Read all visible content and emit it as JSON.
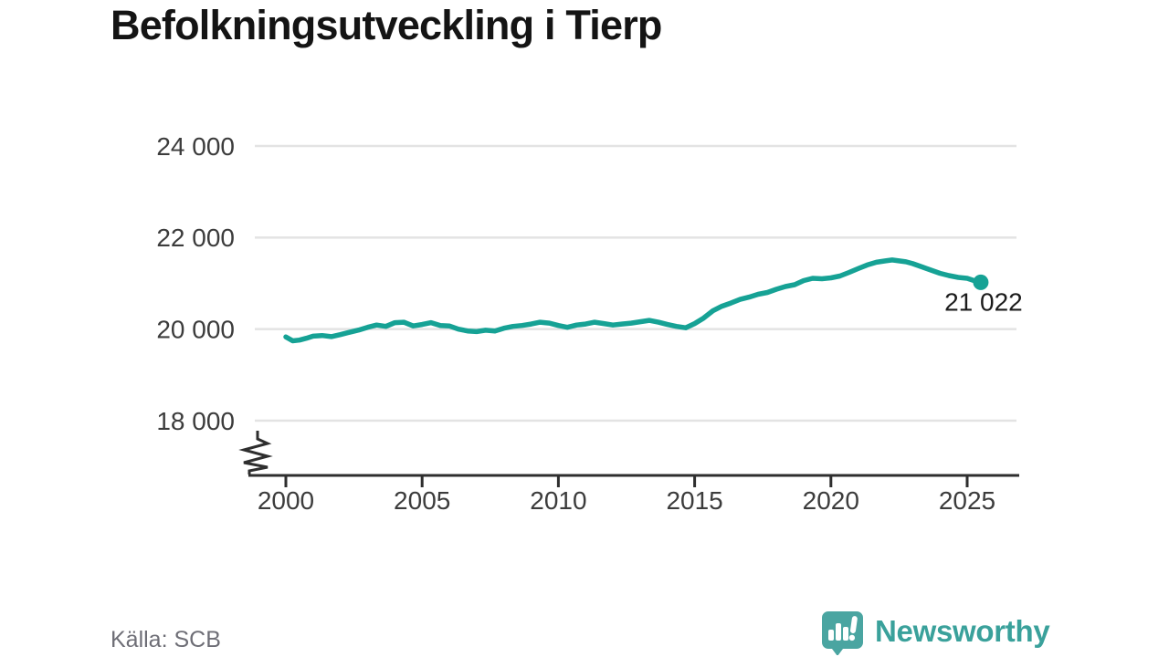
{
  "chart_data": {
    "type": "line",
    "title": "Befolkningsutveckling i Tierp",
    "xlabel": "",
    "ylabel": "",
    "x_ticks": [
      2000,
      2005,
      2010,
      2015,
      2020,
      2025
    ],
    "x_tick_labels": [
      "2000",
      "2005",
      "2010",
      "2015",
      "2020",
      "2025"
    ],
    "y_ticks": [
      18000,
      20000,
      22000,
      24000
    ],
    "y_tick_labels": [
      "18 000",
      "20 000",
      "22 000",
      "24 000"
    ],
    "ylim": [
      18000,
      24000
    ],
    "xlim": [
      2000,
      2026.9
    ],
    "grid": "horizontal",
    "axis_break": true,
    "legend": "none",
    "latest_value": 21022,
    "latest_value_label": "21 022",
    "series": [
      {
        "name": "Befolkning i Tierp",
        "color": "#16a295",
        "points": [
          [
            2000.0,
            19830
          ],
          [
            2000.25,
            19745
          ],
          [
            2000.5,
            19760
          ],
          [
            2000.75,
            19800
          ],
          [
            2001.0,
            19845
          ],
          [
            2001.33,
            19860
          ],
          [
            2001.67,
            19835
          ],
          [
            2002.0,
            19880
          ],
          [
            2002.33,
            19930
          ],
          [
            2002.67,
            19980
          ],
          [
            2003.0,
            20040
          ],
          [
            2003.33,
            20090
          ],
          [
            2003.67,
            20060
          ],
          [
            2004.0,
            20140
          ],
          [
            2004.33,
            20150
          ],
          [
            2004.67,
            20070
          ],
          [
            2005.0,
            20100
          ],
          [
            2005.33,
            20140
          ],
          [
            2005.67,
            20080
          ],
          [
            2006.0,
            20070
          ],
          [
            2006.33,
            20000
          ],
          [
            2006.67,
            19960
          ],
          [
            2007.0,
            19945
          ],
          [
            2007.33,
            19975
          ],
          [
            2007.67,
            19960
          ],
          [
            2008.0,
            20020
          ],
          [
            2008.33,
            20060
          ],
          [
            2008.67,
            20080
          ],
          [
            2009.0,
            20110
          ],
          [
            2009.33,
            20150
          ],
          [
            2009.67,
            20130
          ],
          [
            2010.0,
            20080
          ],
          [
            2010.33,
            20040
          ],
          [
            2010.67,
            20090
          ],
          [
            2011.0,
            20110
          ],
          [
            2011.33,
            20150
          ],
          [
            2011.67,
            20120
          ],
          [
            2012.0,
            20090
          ],
          [
            2012.33,
            20110
          ],
          [
            2012.67,
            20130
          ],
          [
            2013.0,
            20160
          ],
          [
            2013.33,
            20190
          ],
          [
            2013.67,
            20150
          ],
          [
            2014.0,
            20100
          ],
          [
            2014.33,
            20060
          ],
          [
            2014.67,
            20030
          ],
          [
            2015.0,
            20120
          ],
          [
            2015.33,
            20240
          ],
          [
            2015.67,
            20400
          ],
          [
            2016.0,
            20500
          ],
          [
            2016.33,
            20570
          ],
          [
            2016.67,
            20650
          ],
          [
            2017.0,
            20700
          ],
          [
            2017.33,
            20760
          ],
          [
            2017.67,
            20800
          ],
          [
            2018.0,
            20870
          ],
          [
            2018.33,
            20930
          ],
          [
            2018.67,
            20970
          ],
          [
            2019.0,
            21060
          ],
          [
            2019.33,
            21110
          ],
          [
            2019.67,
            21100
          ],
          [
            2020.0,
            21120
          ],
          [
            2020.33,
            21160
          ],
          [
            2020.67,
            21240
          ],
          [
            2021.0,
            21320
          ],
          [
            2021.33,
            21400
          ],
          [
            2021.67,
            21460
          ],
          [
            2022.0,
            21490
          ],
          [
            2022.25,
            21510
          ],
          [
            2022.5,
            21490
          ],
          [
            2022.75,
            21470
          ],
          [
            2023.0,
            21430
          ],
          [
            2023.33,
            21360
          ],
          [
            2023.67,
            21290
          ],
          [
            2024.0,
            21220
          ],
          [
            2024.33,
            21170
          ],
          [
            2024.67,
            21130
          ],
          [
            2025.0,
            21110
          ],
          [
            2025.25,
            21060
          ],
          [
            2025.5,
            21022
          ]
        ]
      }
    ]
  },
  "footer": {
    "source": "Källa: SCB",
    "brand": "Newsworthy"
  },
  "colors": {
    "page_bg": "#ffffff",
    "line": "#16a295",
    "grid": "#e3e3e3",
    "axis": "#2e2e2e",
    "tick_text": "#3c3c3c",
    "title_text": "#141414",
    "annotation_text": "#1c1c1c",
    "source_text": "#6e6e76",
    "brand_text": "#3aa19b",
    "brand_bubble": "#4aa5a1"
  }
}
